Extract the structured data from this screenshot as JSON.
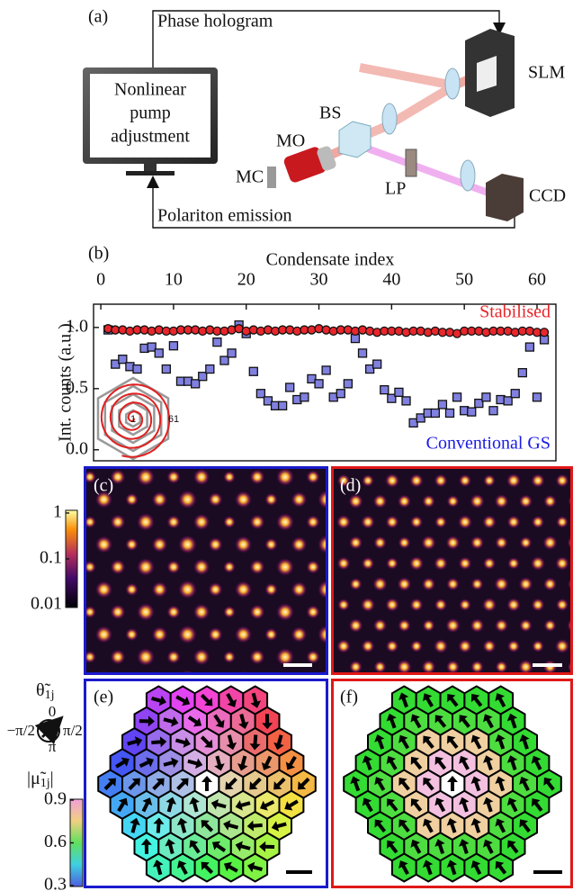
{
  "panel_a": {
    "label": "(a)",
    "top_arrow": "Phase hologram",
    "bottom_arrow": "Polariton emission",
    "monitor": [
      "Nonlinear",
      "pump",
      "adjustment"
    ],
    "components": {
      "slm": "SLM",
      "bs": "BS",
      "mo": "MO",
      "mc": "MC",
      "lp": "LP",
      "ccd": "CCD"
    }
  },
  "chart_data": {
    "type": "scatter",
    "label": "(b)",
    "x_label": "Condensate index",
    "y_label": "Int. counts (a.u.)",
    "xaxis_position": "top",
    "x": [
      1,
      2,
      3,
      4,
      5,
      6,
      7,
      8,
      9,
      10,
      11,
      12,
      13,
      14,
      15,
      16,
      17,
      18,
      19,
      20,
      21,
      22,
      23,
      24,
      25,
      26,
      27,
      28,
      29,
      30,
      31,
      32,
      33,
      34,
      35,
      36,
      37,
      38,
      39,
      40,
      41,
      42,
      43,
      44,
      45,
      46,
      47,
      48,
      49,
      50,
      51,
      52,
      53,
      54,
      55,
      56,
      57,
      58,
      59,
      60,
      61
    ],
    "series": [
      {
        "name": "Stabilised",
        "color": "#e8262b",
        "marker": "circle",
        "values": [
          0.99,
          0.98,
          0.98,
          0.97,
          0.98,
          0.98,
          0.97,
          0.98,
          0.97,
          0.97,
          0.98,
          0.98,
          0.98,
          0.97,
          0.98,
          0.97,
          0.97,
          0.98,
          0.99,
          0.97,
          0.98,
          0.97,
          0.98,
          0.97,
          0.98,
          0.98,
          0.97,
          0.98,
          0.98,
          0.99,
          0.98,
          0.97,
          0.98,
          0.98,
          0.97,
          0.98,
          0.97,
          0.96,
          0.97,
          0.97,
          0.97,
          0.96,
          0.97,
          0.97,
          0.96,
          0.97,
          0.96,
          0.96,
          0.95,
          0.97,
          0.97,
          0.97,
          0.96,
          0.97,
          0.97,
          0.97,
          0.96,
          0.97,
          0.97,
          0.96,
          0.96
        ]
      },
      {
        "name": "Conventional GS",
        "color": "#8080e0",
        "marker": "square",
        "label_color": "#1a1ae6",
        "values": [
          0.98,
          0.7,
          0.74,
          0.68,
          0.66,
          0.83,
          0.84,
          0.79,
          0.66,
          0.85,
          0.56,
          0.56,
          0.54,
          0.6,
          0.66,
          0.88,
          0.73,
          0.79,
          1.02,
          0.95,
          0.64,
          0.46,
          0.4,
          0.36,
          0.36,
          0.51,
          0.41,
          0.43,
          0.58,
          0.54,
          0.65,
          0.43,
          0.46,
          0.54,
          0.91,
          0.79,
          0.66,
          0.7,
          0.49,
          0.42,
          0.47,
          0.4,
          0.22,
          0.26,
          0.3,
          0.3,
          0.37,
          0.3,
          0.43,
          0.32,
          0.31,
          0.38,
          0.43,
          0.32,
          0.41,
          0.4,
          0.46,
          0.63,
          0.84,
          0.43,
          0.9
        ]
      }
    ],
    "xlim": [
      -1,
      62.6
    ],
    "xticks": [
      0,
      10,
      20,
      30,
      40,
      50,
      60
    ],
    "ylim": [
      -0.09,
      1.19
    ],
    "yticks": [
      {
        "value": 0,
        "label": "0.0"
      },
      {
        "value": 0.5,
        "label": "0.5"
      },
      {
        "value": 1,
        "label": "1.0"
      }
    ],
    "inset_labels": [
      "1",
      "61"
    ]
  },
  "panels": {
    "c": "(c)",
    "d": "(d)",
    "e": "(e)",
    "f": "(f)"
  },
  "colorbar_intensity": {
    "ylim": [
      0.01,
      1
    ],
    "yticks": [
      1,
      0.1,
      0.01
    ],
    "log": true
  },
  "phase_legend": {
    "symbol": "θ̃",
    "subscript": "1j",
    "top": "0",
    "bottom": "π",
    "left": "−π/2",
    "right": "π/2"
  },
  "colorbar_magnitude": {
    "symbol": "|μ̃",
    "subscript": "1j",
    "suffix": "|",
    "ylim": [
      0.3,
      0.9
    ],
    "yticks": [
      0.9,
      0.6,
      0.3
    ]
  }
}
